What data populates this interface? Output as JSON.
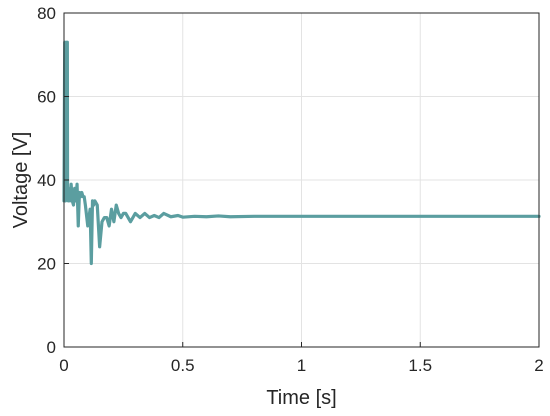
{
  "chart_data": {
    "type": "line",
    "xlabel": "Time [s]",
    "ylabel": "Voltage [V]",
    "xlim": [
      0,
      2
    ],
    "ylim": [
      0,
      80
    ],
    "xticks": [
      0,
      0.5,
      1,
      1.5,
      2
    ],
    "yticks": [
      0,
      20,
      40,
      60,
      80
    ],
    "xtick_labels": [
      "0",
      "0.5",
      "1",
      "1.5",
      "2"
    ],
    "ytick_labels": [
      "0",
      "20",
      "40",
      "60",
      "80"
    ],
    "grid": true,
    "colors": {
      "series": "#5b9ea0",
      "grid": "#e3e3e3",
      "axis": "#262626"
    },
    "series": [
      {
        "x": [
          0,
          0.003,
          0.006,
          0.008,
          0.009,
          0.011,
          0.012,
          0.014,
          0.015,
          0.017,
          0.018,
          0.02,
          0.022,
          0.025,
          0.03,
          0.035,
          0.04,
          0.045,
          0.05,
          0.055,
          0.06,
          0.065,
          0.07,
          0.075,
          0.08,
          0.085,
          0.09,
          0.1,
          0.11,
          0.115,
          0.12,
          0.125,
          0.13,
          0.14,
          0.15,
          0.16,
          0.17,
          0.18,
          0.19,
          0.2,
          0.21,
          0.22,
          0.23,
          0.24,
          0.25,
          0.26,
          0.27,
          0.28,
          0.3,
          0.32,
          0.34,
          0.36,
          0.38,
          0.4,
          0.42,
          0.45,
          0.48,
          0.5,
          0.55,
          0.6,
          0.65,
          0.7,
          0.8,
          0.9,
          1.0,
          1.2,
          1.5,
          1.8,
          2.0
        ],
        "y": [
          35,
          73,
          35,
          72,
          36,
          73,
          38,
          73,
          36,
          38,
          35,
          37,
          36,
          35,
          39,
          35,
          34,
          38,
          35,
          39,
          29,
          37,
          36,
          37,
          36,
          36,
          34,
          29,
          33,
          20,
          35,
          34,
          35,
          34,
          24,
          30,
          31,
          31,
          29,
          33,
          30,
          34,
          32,
          31,
          32,
          32,
          31,
          30,
          32,
          31,
          32,
          31,
          31.5,
          31,
          32,
          31.2,
          31.5,
          31.1,
          31.3,
          31.2,
          31.4,
          31.2,
          31.3,
          31.3,
          31.3,
          31.3,
          31.3,
          31.3,
          31.3
        ]
      }
    ]
  }
}
